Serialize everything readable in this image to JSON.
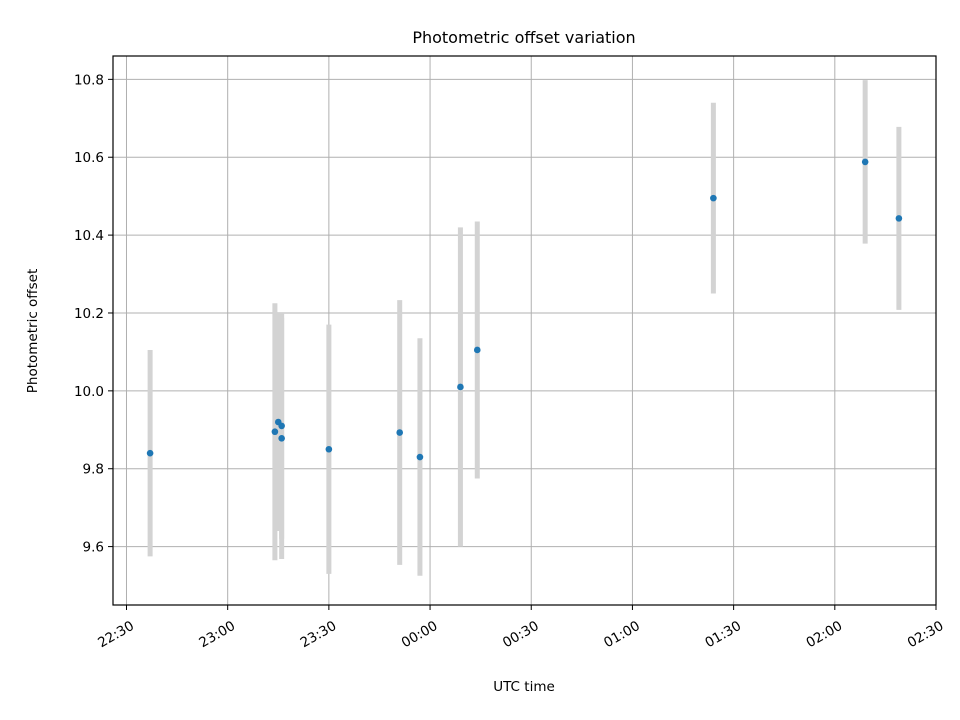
{
  "chart_data": {
    "type": "scatter",
    "title": "Photometric offset variation",
    "xlabel": "UTC time",
    "ylabel": "Photometric offset",
    "x_ticks": [
      "22:30",
      "23:00",
      "23:30",
      "00:00",
      "00:30",
      "01:00",
      "01:30",
      "02:00",
      "02:30"
    ],
    "y_ticks": [
      "9.6",
      "9.8",
      "10.0",
      "10.2",
      "10.4",
      "10.6",
      "10.8"
    ],
    "xlim": [
      "22:26",
      "02:30"
    ],
    "ylim": [
      9.45,
      10.86
    ],
    "grid": true,
    "colors": {
      "point": "#1f77b4",
      "errorbar": "#d3d3d3",
      "grid": "#b0b0b0"
    },
    "series": [
      {
        "points": [
          {
            "x": "22:37",
            "y": 9.84,
            "err": 0.265
          },
          {
            "x": "23:14",
            "y": 9.895,
            "err": 0.33
          },
          {
            "x": "23:15",
            "y": 9.92,
            "err": 0.28
          },
          {
            "x": "23:16",
            "y": 9.878,
            "err": 0.31
          },
          {
            "x": "23:16",
            "y": 9.91,
            "err": 0.29
          },
          {
            "x": "23:30",
            "y": 9.85,
            "err": 0.32
          },
          {
            "x": "23:51",
            "y": 9.893,
            "err": 0.34
          },
          {
            "x": "23:57",
            "y": 9.83,
            "err": 0.305
          },
          {
            "x": "00:09",
            "y": 10.01,
            "err": 0.41
          },
          {
            "x": "00:14",
            "y": 10.105,
            "err": 0.33
          },
          {
            "x": "01:24",
            "y": 10.495,
            "err": 0.245
          },
          {
            "x": "02:09",
            "y": 10.588,
            "err": 0.21
          },
          {
            "x": "02:19",
            "y": 10.443,
            "err": 0.235
          }
        ]
      }
    ]
  }
}
